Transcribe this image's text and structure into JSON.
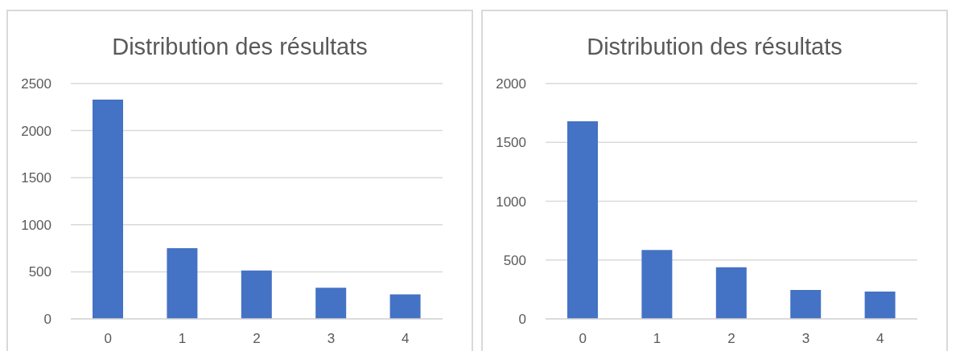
{
  "chart_data": [
    {
      "type": "bar",
      "title": "Distribution des résultats",
      "categories": [
        "0",
        "1",
        "2",
        "3",
        "4"
      ],
      "values": [
        2330,
        751,
        515,
        330,
        261
      ],
      "color": "#4472c4",
      "ylim": [
        0,
        2500
      ],
      "yticks": [
        0,
        500,
        1000,
        1500,
        2000,
        2500
      ],
      "grid": "y"
    },
    {
      "type": "bar",
      "title": "Distribution des résultats",
      "categories": [
        "0",
        "1",
        "2",
        "3",
        "4"
      ],
      "values": [
        1680,
        586,
        439,
        246,
        232
      ],
      "color": "#4472c4",
      "ylim": [
        0,
        2000
      ],
      "yticks": [
        0,
        500,
        1000,
        1500,
        2000
      ],
      "grid": "y"
    }
  ]
}
